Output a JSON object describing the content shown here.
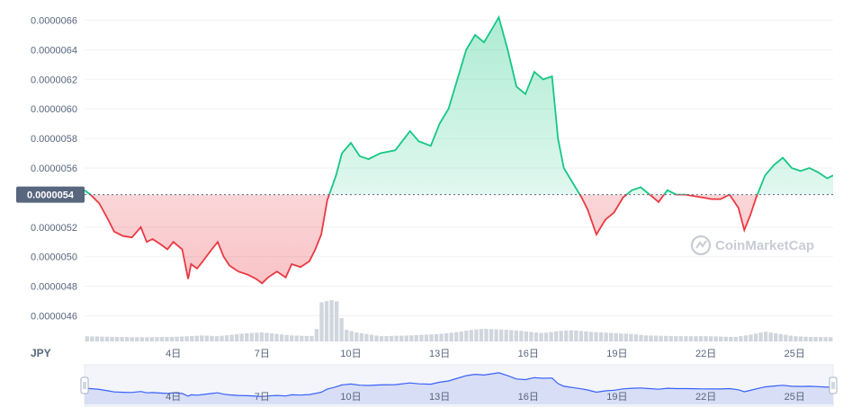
{
  "chart_data": {
    "type": "line",
    "currency": "JPY",
    "current_price_label": "0.0000054",
    "reference_price": 5.42e-06,
    "watermark": "CoinMarketCap",
    "y_ticks": [
      {
        "value": 4.6e-06,
        "label": "0.0000046"
      },
      {
        "value": 4.8e-06,
        "label": "0.0000048"
      },
      {
        "value": 5e-06,
        "label": "0.0000050"
      },
      {
        "value": 5.2e-06,
        "label": "0.0000052"
      },
      {
        "value": 5.6e-06,
        "label": "0.0000056"
      },
      {
        "value": 5.8e-06,
        "label": "0.0000058"
      },
      {
        "value": 6e-06,
        "label": "0.0000060"
      },
      {
        "value": 6.2e-06,
        "label": "0.0000062"
      },
      {
        "value": 6.4e-06,
        "label": "0.0000064"
      },
      {
        "value": 6.6e-06,
        "label": "0.0000066"
      }
    ],
    "ylim": [
      4.5e-06,
      6.7e-06
    ],
    "xlim": [
      1.0,
      26.3
    ],
    "x_ticks": [
      {
        "value": 4,
        "label": "4日"
      },
      {
        "value": 7,
        "label": "7日"
      },
      {
        "value": 10,
        "label": "10日"
      },
      {
        "value": 13,
        "label": "13日"
      },
      {
        "value": 16,
        "label": "16日"
      },
      {
        "value": 19,
        "label": "19日"
      },
      {
        "value": 22,
        "label": "22日"
      },
      {
        "value": 25,
        "label": "25日"
      }
    ],
    "price_series": {
      "x": [
        1.0,
        1.2,
        1.5,
        1.8,
        2.0,
        2.3,
        2.6,
        2.9,
        3.1,
        3.3,
        3.6,
        3.8,
        4.0,
        4.3,
        4.5,
        4.6,
        4.8,
        5.0,
        5.3,
        5.5,
        5.7,
        5.9,
        6.2,
        6.5,
        6.8,
        7.0,
        7.2,
        7.5,
        7.8,
        8.0,
        8.3,
        8.6,
        8.8,
        9.0,
        9.2,
        9.5,
        9.7,
        10.0,
        10.3,
        10.6,
        11.0,
        11.5,
        12.0,
        12.3,
        12.7,
        13.0,
        13.3,
        13.6,
        13.9,
        14.2,
        14.5,
        14.8,
        15.0,
        15.3,
        15.6,
        15.9,
        16.2,
        16.5,
        16.8,
        17.0,
        17.2,
        17.5,
        17.8,
        18.0,
        18.3,
        18.6,
        18.9,
        19.2,
        19.5,
        19.8,
        20.1,
        20.4,
        20.7,
        21.0,
        21.3,
        21.6,
        21.9,
        22.2,
        22.5,
        22.8,
        23.1,
        23.3,
        23.5,
        23.7,
        24.0,
        24.3,
        24.6,
        24.9,
        25.2,
        25.5,
        25.8,
        26.1,
        26.3
      ],
      "y": [
        5.45e-06,
        5.42e-06,
        5.36e-06,
        5.25e-06,
        5.17e-06,
        5.14e-06,
        5.13e-06,
        5.2e-06,
        5.1e-06,
        5.12e-06,
        5.08e-06,
        5.05e-06,
        5.1e-06,
        5.05e-06,
        4.85e-06,
        4.95e-06,
        4.92e-06,
        4.97e-06,
        5.05e-06,
        5.1e-06,
        5e-06,
        4.94e-06,
        4.9e-06,
        4.88e-06,
        4.85e-06,
        4.82e-06,
        4.86e-06,
        4.9e-06,
        4.86e-06,
        4.95e-06,
        4.93e-06,
        4.97e-06,
        5.05e-06,
        5.15e-06,
        5.38e-06,
        5.55e-06,
        5.7e-06,
        5.77e-06,
        5.68e-06,
        5.66e-06,
        5.7e-06,
        5.72e-06,
        5.85e-06,
        5.78e-06,
        5.75e-06,
        5.9e-06,
        6e-06,
        6.2e-06,
        6.4e-06,
        6.5e-06,
        6.45e-06,
        6.55e-06,
        6.62e-06,
        6.4e-06,
        6.15e-06,
        6.1e-06,
        6.25e-06,
        6.2e-06,
        6.22e-06,
        5.8e-06,
        5.6e-06,
        5.5e-06,
        5.4e-06,
        5.32e-06,
        5.15e-06,
        5.25e-06,
        5.3e-06,
        5.4e-06,
        5.45e-06,
        5.47e-06,
        5.42e-06,
        5.37e-06,
        5.45e-06,
        5.42e-06,
        5.42e-06,
        5.41e-06,
        5.4e-06,
        5.39e-06,
        5.39e-06,
        5.42e-06,
        5.33e-06,
        5.18e-06,
        5.28e-06,
        5.4e-06,
        5.55e-06,
        5.62e-06,
        5.67e-06,
        5.6e-06,
        5.58e-06,
        5.6e-06,
        5.57e-06,
        5.53e-06,
        5.55e-06
      ]
    },
    "volume_series": {
      "x": [
        1.0,
        2.0,
        3.0,
        4.0,
        5.0,
        5.5,
        6.0,
        6.5,
        7.0,
        7.5,
        8.0,
        8.8,
        9.0,
        9.2,
        9.5,
        9.8,
        10.2,
        11.0,
        12.0,
        13.0,
        13.5,
        14.0,
        14.5,
        15.0,
        15.5,
        16.0,
        16.5,
        17.0,
        17.5,
        18.0,
        18.5,
        19.0,
        19.5,
        20.0,
        21.0,
        22.0,
        23.0,
        23.5,
        24.0,
        24.5,
        25.0,
        25.5,
        26.3
      ],
      "v": [
        0.35,
        0.3,
        0.28,
        0.3,
        0.4,
        0.35,
        0.45,
        0.55,
        0.6,
        0.5,
        0.4,
        0.35,
        2.6,
        2.7,
        2.8,
        0.8,
        0.6,
        0.35,
        0.4,
        0.5,
        0.6,
        0.75,
        0.85,
        0.8,
        0.75,
        0.65,
        0.55,
        0.7,
        0.75,
        0.65,
        0.6,
        0.55,
        0.5,
        0.4,
        0.35,
        0.35,
        0.3,
        0.45,
        0.65,
        0.5,
        0.35,
        0.3,
        0.28
      ]
    }
  }
}
